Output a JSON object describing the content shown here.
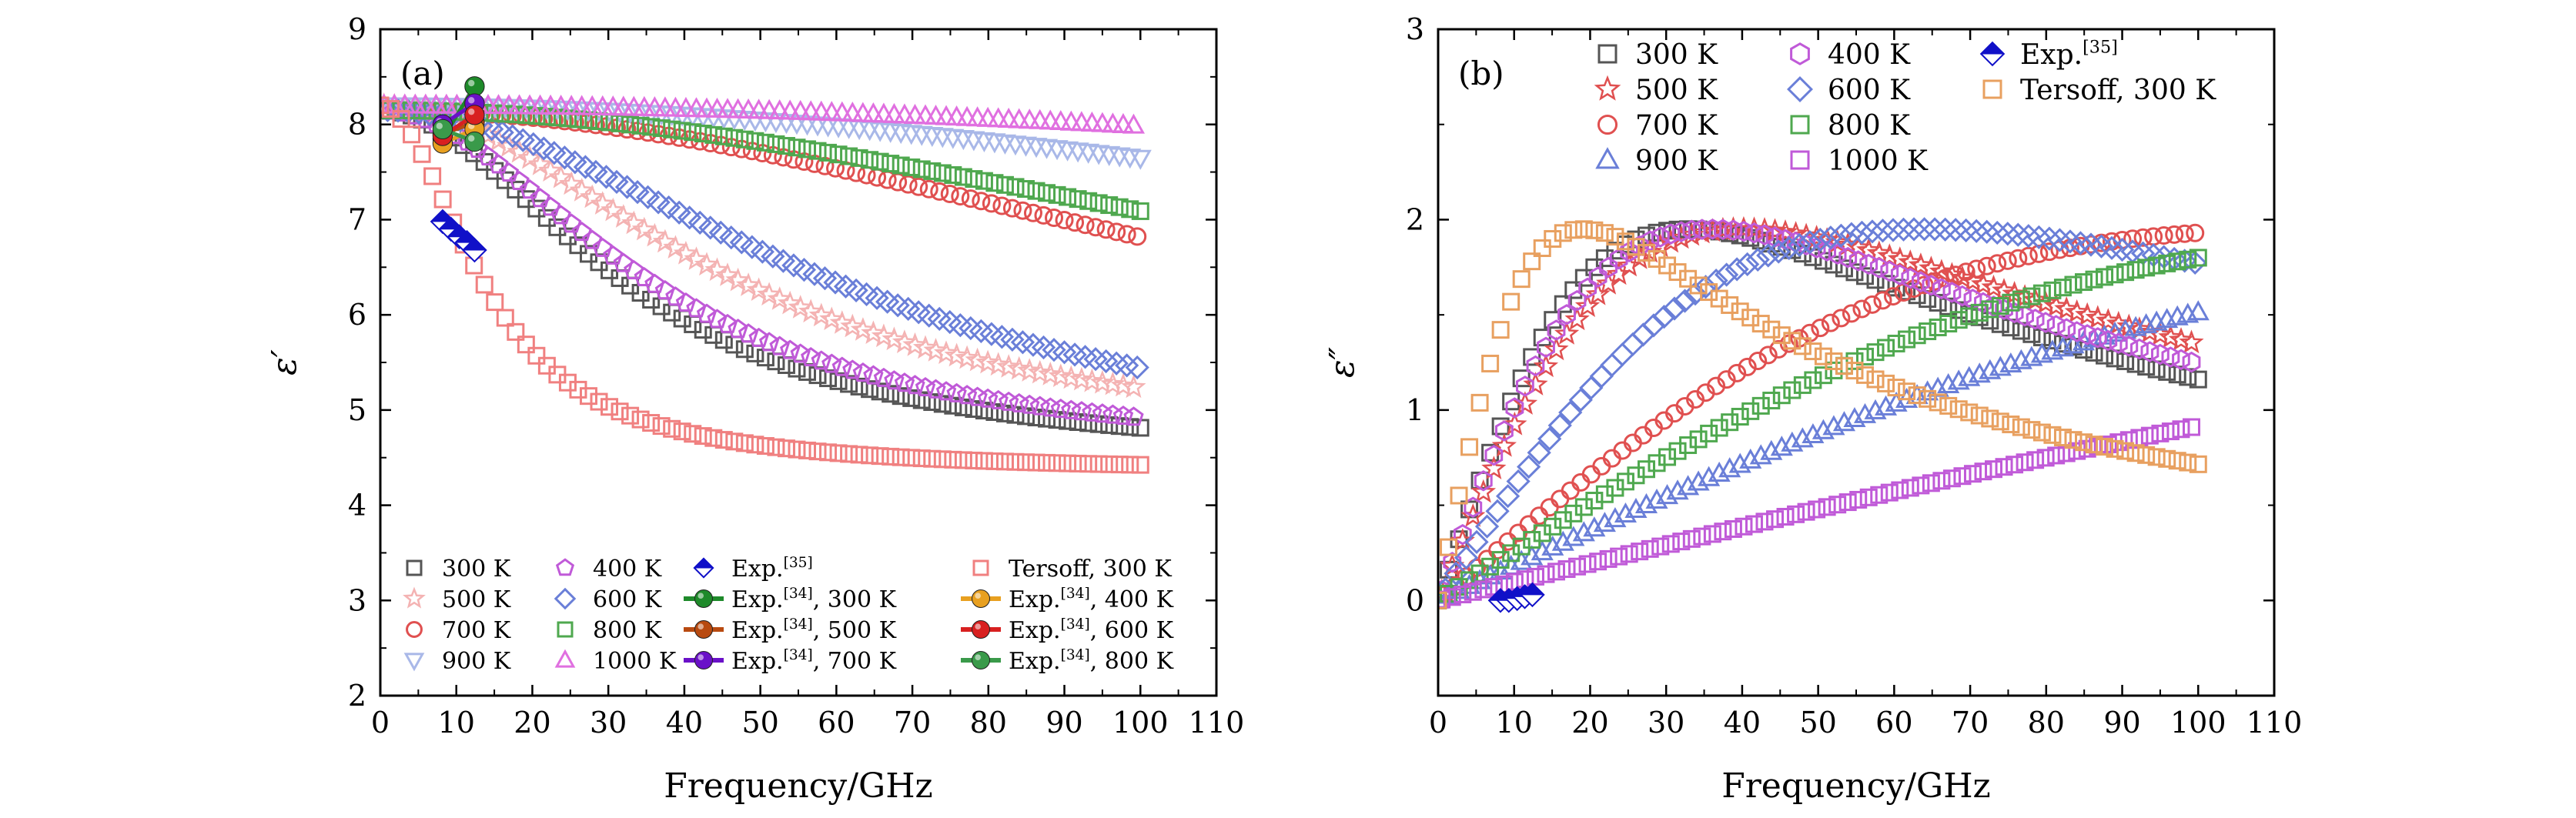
{
  "chart_data": [
    {
      "type": "scatter",
      "panel_label": "(a)",
      "xlabel": "Frequency/GHz",
      "ylabel": "ε′",
      "xlim": [
        0,
        110
      ],
      "ylim": [
        2,
        9
      ],
      "xticks": [
        "0",
        "10",
        "20",
        "30",
        "40",
        "50",
        "60",
        "70",
        "80",
        "90",
        "100",
        "110"
      ],
      "yticks": [
        "2",
        "3",
        "4",
        "5",
        "6",
        "7",
        "8",
        "9"
      ],
      "legend_position": "bottom",
      "series": [
        {
          "name": "300 K",
          "marker": "square",
          "color": "#555555",
          "model": "debye",
          "eps_inf": 4.45,
          "eps_s": 8.15,
          "f0": 33,
          "x_range": [
            0,
            100
          ]
        },
        {
          "name": "500 K",
          "marker": "star",
          "color": "#f4b3b3",
          "model": "debye",
          "eps_inf": 4.6,
          "eps_s": 8.2,
          "f0": 46,
          "x_range": [
            0,
            100
          ]
        },
        {
          "name": "700 K",
          "marker": "circle",
          "color": "#e05050",
          "model": "debye",
          "eps_inf": 4.2,
          "eps_s": 8.15,
          "f0": 140,
          "x_range": [
            0,
            100
          ]
        },
        {
          "name": "900 K",
          "marker": "triangle-down",
          "color": "#a9b8e8",
          "model": "debye",
          "eps_inf": 4.2,
          "eps_s": 8.2,
          "f0": 250,
          "x_range": [
            0,
            100
          ]
        },
        {
          "name": "400 K",
          "marker": "pentagon",
          "color": "#c05ad8",
          "model": "debye",
          "eps_inf": 4.5,
          "eps_s": 8.15,
          "f0": 36,
          "x_range": [
            0,
            100
          ]
        },
        {
          "name": "600 K",
          "marker": "diamond",
          "color": "#6a7fd8",
          "model": "debye",
          "eps_inf": 4.4,
          "eps_s": 8.15,
          "f0": 62,
          "x_range": [
            0,
            100
          ]
        },
        {
          "name": "800 K",
          "marker": "square",
          "color": "#4fa84f",
          "model": "debye",
          "eps_inf": 4.2,
          "eps_s": 8.15,
          "f0": 165,
          "x_range": [
            0,
            100
          ]
        },
        {
          "name": "1000 K",
          "marker": "triangle-up",
          "color": "#e070e0",
          "model": "debye",
          "eps_inf": 4.0,
          "eps_s": 8.2,
          "f0": 430,
          "x_range": [
            0,
            100
          ]
        },
        {
          "name": "Exp.[35]",
          "marker": "half-diamond",
          "color": "#1010c8",
          "x": [
            8.2,
            9.3,
            10.4,
            11.4,
            12.4
          ],
          "y": [
            6.98,
            6.9,
            6.82,
            6.76,
            6.68
          ]
        },
        {
          "name": "Exp.[34], 300 K",
          "marker": "ball",
          "color": "#1e8a2a",
          "x": [
            8.2,
            12.4
          ],
          "y": [
            7.85,
            8.4
          ]
        },
        {
          "name": "Exp.[34], 500 K",
          "marker": "ball",
          "color": "#b84a10",
          "x": [
            8.2,
            12.4
          ],
          "y": [
            7.9,
            8.02
          ]
        },
        {
          "name": "Exp.[34], 700 K",
          "marker": "ball",
          "color": "#6a10c8",
          "x": [
            8.2,
            12.4
          ],
          "y": [
            8.0,
            8.22
          ]
        },
        {
          "name": "Tersoff, 300 K",
          "marker": "square",
          "color": "#f08080",
          "model": "debye",
          "eps_inf": 4.35,
          "eps_s": 8.2,
          "f0": 14,
          "x_range": [
            0,
            100
          ]
        },
        {
          "name": "Exp.[34], 400 K",
          "marker": "ball",
          "color": "#e8a020",
          "x": [
            8.2,
            12.4
          ],
          "y": [
            7.8,
            7.95
          ]
        },
        {
          "name": "Exp.[34], 600 K",
          "marker": "ball",
          "color": "#d82020",
          "x": [
            8.2,
            12.4
          ],
          "y": [
            7.88,
            8.1
          ]
        },
        {
          "name": "Exp.[34], 800 K",
          "marker": "ball",
          "color": "#3a9a4a",
          "x": [
            8.2,
            12.4
          ],
          "y": [
            7.95,
            7.82
          ]
        }
      ]
    },
    {
      "type": "scatter",
      "panel_label": "(b)",
      "xlabel": "Frequency/GHz",
      "ylabel": "ε″",
      "xlim": [
        0,
        110
      ],
      "ylim": [
        -0.5,
        3
      ],
      "xticks": [
        "0",
        "10",
        "20",
        "30",
        "40",
        "50",
        "60",
        "70",
        "80",
        "90",
        "100",
        "110"
      ],
      "yticks": [
        "0",
        "1",
        "2",
        "3"
      ],
      "legend_position": "top",
      "series": [
        {
          "name": "300 K",
          "marker": "square",
          "color": "#555555",
          "model": "debye-loss",
          "peak": 1.95,
          "f0": 33,
          "x_range": [
            0,
            100
          ]
        },
        {
          "name": "500 K",
          "marker": "star",
          "color": "#e05050",
          "model": "debye-loss",
          "peak": 1.95,
          "f0": 40,
          "x_range": [
            0,
            100
          ]
        },
        {
          "name": "700 K",
          "marker": "circle",
          "color": "#e05050",
          "model": "debye-loss",
          "peak": 1.95,
          "f0": 115,
          "x_range": [
            0,
            100
          ]
        },
        {
          "name": "900 K",
          "marker": "triangle-up",
          "color": "#6a7fd8",
          "model": "debye-loss",
          "peak": 1.95,
          "f0": 210,
          "x_range": [
            0,
            100
          ]
        },
        {
          "name": "400 K",
          "marker": "hexagon",
          "color": "#c05ad8",
          "model": "debye-loss",
          "peak": 1.95,
          "f0": 36,
          "x_range": [
            0,
            100
          ]
        },
        {
          "name": "600 K",
          "marker": "diamond",
          "color": "#6a7fd8",
          "model": "debye-loss",
          "peak": 1.95,
          "f0": 64,
          "x_range": [
            0,
            100
          ]
        },
        {
          "name": "800 K",
          "marker": "square",
          "color": "#4fa84f",
          "model": "debye-loss",
          "peak": 1.95,
          "f0": 150,
          "x_range": [
            0,
            100
          ]
        },
        {
          "name": "1000 K",
          "marker": "square",
          "color": "#c05ad8",
          "model": "debye-loss",
          "peak": 1.95,
          "f0": 400,
          "x_range": [
            0,
            100
          ]
        },
        {
          "name": "Exp.[35]",
          "marker": "half-diamond",
          "color": "#1010c8",
          "x": [
            8.2,
            9.3,
            10.4,
            11.4,
            12.4
          ],
          "y": [
            0.0,
            0.0,
            0.01,
            0.02,
            0.03
          ]
        },
        {
          "name": "Tersoff, 300 K",
          "marker": "square",
          "color": "#e8a060",
          "model": "debye-loss",
          "peak": 1.95,
          "f0": 19,
          "x_range": [
            0,
            100
          ]
        }
      ]
    }
  ]
}
